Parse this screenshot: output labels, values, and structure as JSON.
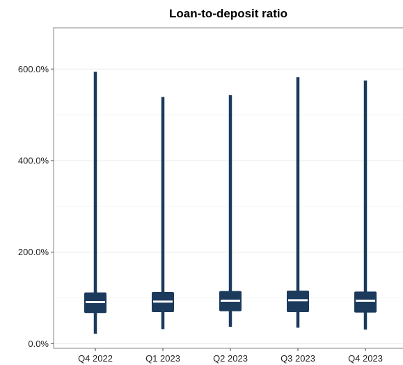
{
  "chart_data": {
    "type": "box",
    "title": "Loan-to-deposit ratio",
    "xlabel": "",
    "ylabel": "",
    "categories": [
      "Q4 2022",
      "Q1 2023",
      "Q2 2023",
      "Q3 2023",
      "Q4 2023"
    ],
    "boxes": [
      {
        "category": "Q4 2022",
        "min": 22,
        "q1": 67,
        "median": 91,
        "q3": 112,
        "max": 594
      },
      {
        "category": "Q1 2023",
        "min": 32,
        "q1": 69,
        "median": 92,
        "q3": 113,
        "max": 539
      },
      {
        "category": "Q2 2023",
        "min": 37,
        "q1": 71,
        "median": 94,
        "q3": 115,
        "max": 543
      },
      {
        "category": "Q3 2023",
        "min": 35,
        "q1": 69,
        "median": 95,
        "q3": 116,
        "max": 582
      },
      {
        "category": "Q4 2023",
        "min": 31,
        "q1": 68,
        "median": 94,
        "q3": 114,
        "max": 575
      }
    ],
    "yticks": [
      0,
      200,
      400,
      600
    ],
    "ytick_labels": [
      "0.0%",
      "200.0%",
      "400.0%",
      "600.0%"
    ],
    "ylim": [
      -10,
      690
    ],
    "grid": true,
    "colors": {
      "box": "#1b3a5c",
      "median": "#ffffff",
      "grid": "#ebebeb",
      "frame": "#9a9a9a"
    }
  }
}
